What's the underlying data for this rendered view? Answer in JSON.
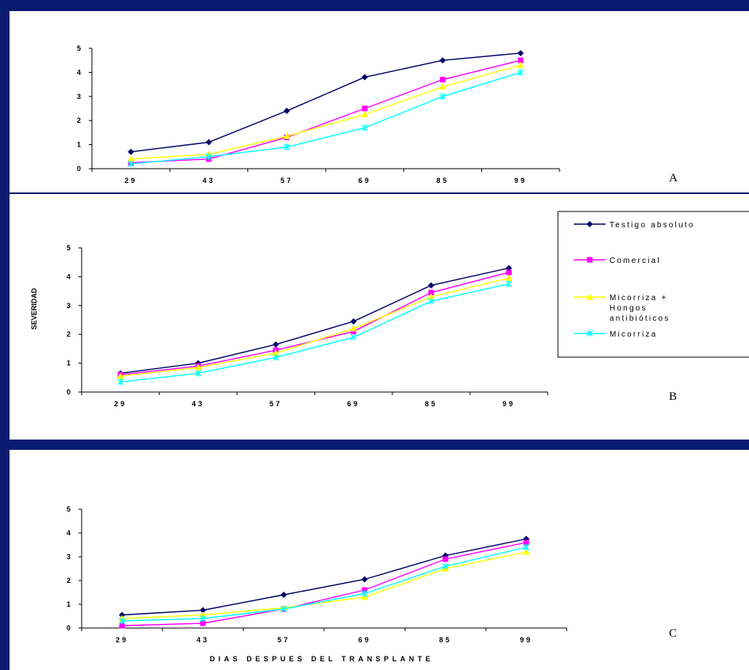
{
  "legend": {
    "items": [
      {
        "label": "Testigo absoluto",
        "color": "#000066",
        "marker": "diamond"
      },
      {
        "label": "Comercial",
        "color": "#ff00ff",
        "marker": "square"
      },
      {
        "label_lines": [
          "Micorriza +",
          "Hongos",
          "antibióticos"
        ],
        "color": "#ffff00",
        "marker": "triangle"
      },
      {
        "label": "Micorriza",
        "color": "#00ffff",
        "marker": "star"
      }
    ]
  },
  "ylabel": "SEVERIDAD",
  "xlabel": "DIAS DESPUES DEL TRANSPLANTE",
  "chart_data": [
    {
      "panel": "A",
      "type": "line",
      "x": [
        "29",
        "43",
        "57",
        "69",
        "85",
        "99"
      ],
      "yticks": [
        "0",
        "1",
        "2",
        "3",
        "4",
        "5"
      ],
      "ylim": [
        0,
        5
      ],
      "series": [
        {
          "name": "Testigo absoluto",
          "values": [
            0.7,
            1.1,
            2.4,
            3.8,
            4.5,
            4.8
          ]
        },
        {
          "name": "Comercial",
          "values": [
            0.25,
            0.4,
            1.3,
            2.5,
            3.7,
            4.5
          ]
        },
        {
          "name": "Micorriza + Hongos antibióticos",
          "values": [
            0.4,
            0.6,
            1.35,
            2.25,
            3.4,
            4.3
          ]
        },
        {
          "name": "Micorriza",
          "values": [
            0.2,
            0.5,
            0.9,
            1.7,
            3.0,
            4.0
          ]
        }
      ]
    },
    {
      "panel": "B",
      "type": "line",
      "x": [
        "29",
        "43",
        "57",
        "69",
        "85",
        "99"
      ],
      "yticks": [
        "0",
        "1",
        "2",
        "3",
        "4",
        "5"
      ],
      "ylim": [
        0,
        5
      ],
      "series": [
        {
          "name": "Testigo absoluto",
          "values": [
            0.65,
            1.0,
            1.65,
            2.45,
            3.7,
            4.3
          ]
        },
        {
          "name": "Comercial",
          "values": [
            0.6,
            0.9,
            1.45,
            2.1,
            3.45,
            4.15
          ]
        },
        {
          "name": "Micorriza + Hongos antibióticos",
          "values": [
            0.55,
            0.85,
            1.35,
            2.2,
            3.3,
            3.95
          ]
        },
        {
          "name": "Micorriza",
          "values": [
            0.35,
            0.65,
            1.2,
            1.9,
            3.15,
            3.75
          ]
        }
      ]
    },
    {
      "panel": "C",
      "type": "line",
      "x": [
        "29",
        "43",
        "57",
        "69",
        "85",
        "99"
      ],
      "yticks": [
        "0",
        "1",
        "2",
        "3",
        "4",
        "5"
      ],
      "ylim": [
        0,
        5
      ],
      "series": [
        {
          "name": "Testigo absoluto",
          "values": [
            0.55,
            0.75,
            1.4,
            2.05,
            3.05,
            3.75
          ]
        },
        {
          "name": "Comercial",
          "values": [
            0.1,
            0.2,
            0.8,
            1.6,
            2.9,
            3.6
          ]
        },
        {
          "name": "Micorriza + Hongos antibióticos",
          "values": [
            0.4,
            0.55,
            0.85,
            1.3,
            2.5,
            3.2
          ]
        },
        {
          "name": "Micorriza",
          "values": [
            0.3,
            0.4,
            0.8,
            1.45,
            2.6,
            3.4
          ]
        }
      ]
    }
  ]
}
